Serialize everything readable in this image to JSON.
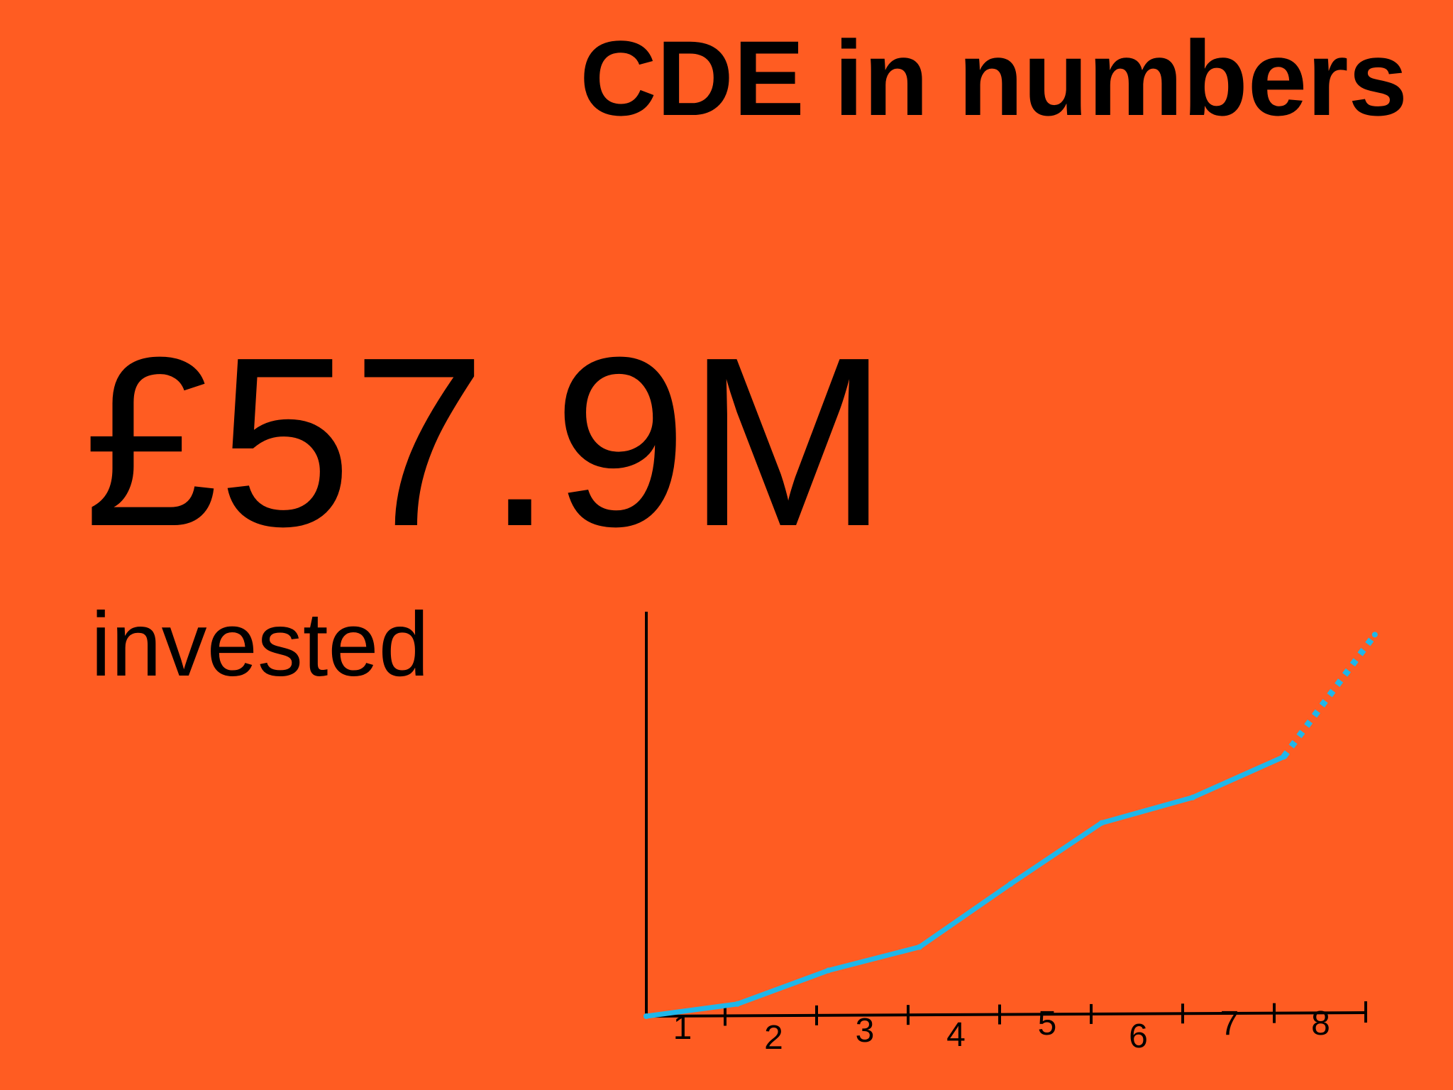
{
  "slide": {
    "title": "CDE in numbers",
    "headline_value": "£57.9M",
    "headline_label": "invested"
  },
  "colors": {
    "background": "#FF5C22",
    "line": "#1FB7EA",
    "axis": "#000000",
    "text": "#000000"
  },
  "chart_data": {
    "type": "line",
    "categories": [
      "1",
      "2",
      "3",
      "4",
      "5",
      "6",
      "7",
      "8"
    ],
    "x": [
      0,
      1,
      2,
      3,
      4,
      5,
      6,
      7,
      8
    ],
    "values": [
      0,
      0.12,
      0.45,
      0.68,
      1.3,
      1.9,
      2.15,
      2.55,
      3.75
    ],
    "projected_from_index": 7,
    "title": "",
    "xlabel": "",
    "ylabel": "",
    "xlim": [
      0,
      7.9
    ],
    "ylim": [
      0,
      3.85
    ],
    "grid": false,
    "legend": false
  }
}
